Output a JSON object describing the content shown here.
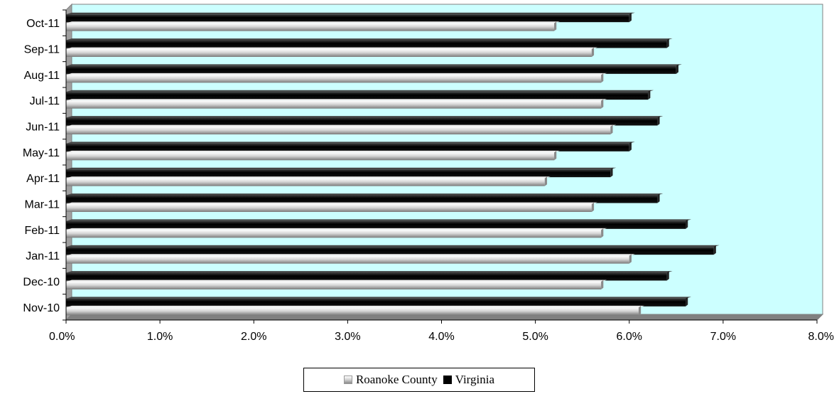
{
  "chart_data": {
    "type": "bar",
    "orientation": "horizontal",
    "categories": [
      "Nov-10",
      "Dec-10",
      "Jan-11",
      "Feb-11",
      "Mar-11",
      "Apr-11",
      "May-11",
      "Jun-11",
      "Jul-11",
      "Aug-11",
      "Sep-11",
      "Oct-11"
    ],
    "series": [
      {
        "name": "Roanoke County",
        "color": "#c8c8c8",
        "values": [
          6.1,
          5.7,
          6.0,
          5.7,
          5.6,
          5.1,
          5.2,
          5.8,
          5.7,
          5.7,
          5.6,
          5.2
        ]
      },
      {
        "name": "Virginia",
        "color": "#000000",
        "values": [
          6.6,
          6.4,
          6.9,
          6.6,
          6.3,
          5.8,
          6.0,
          6.3,
          6.2,
          6.5,
          6.4,
          6.0
        ]
      }
    ],
    "xlim": [
      0,
      8
    ],
    "xticks": [
      "0.0%",
      "1.0%",
      "2.0%",
      "3.0%",
      "4.0%",
      "5.0%",
      "6.0%",
      "7.0%",
      "8.0%"
    ],
    "plot_background": "#ccffff",
    "grid": false,
    "legend_position": "bottom",
    "title": "",
    "xlabel": "",
    "ylabel": ""
  }
}
